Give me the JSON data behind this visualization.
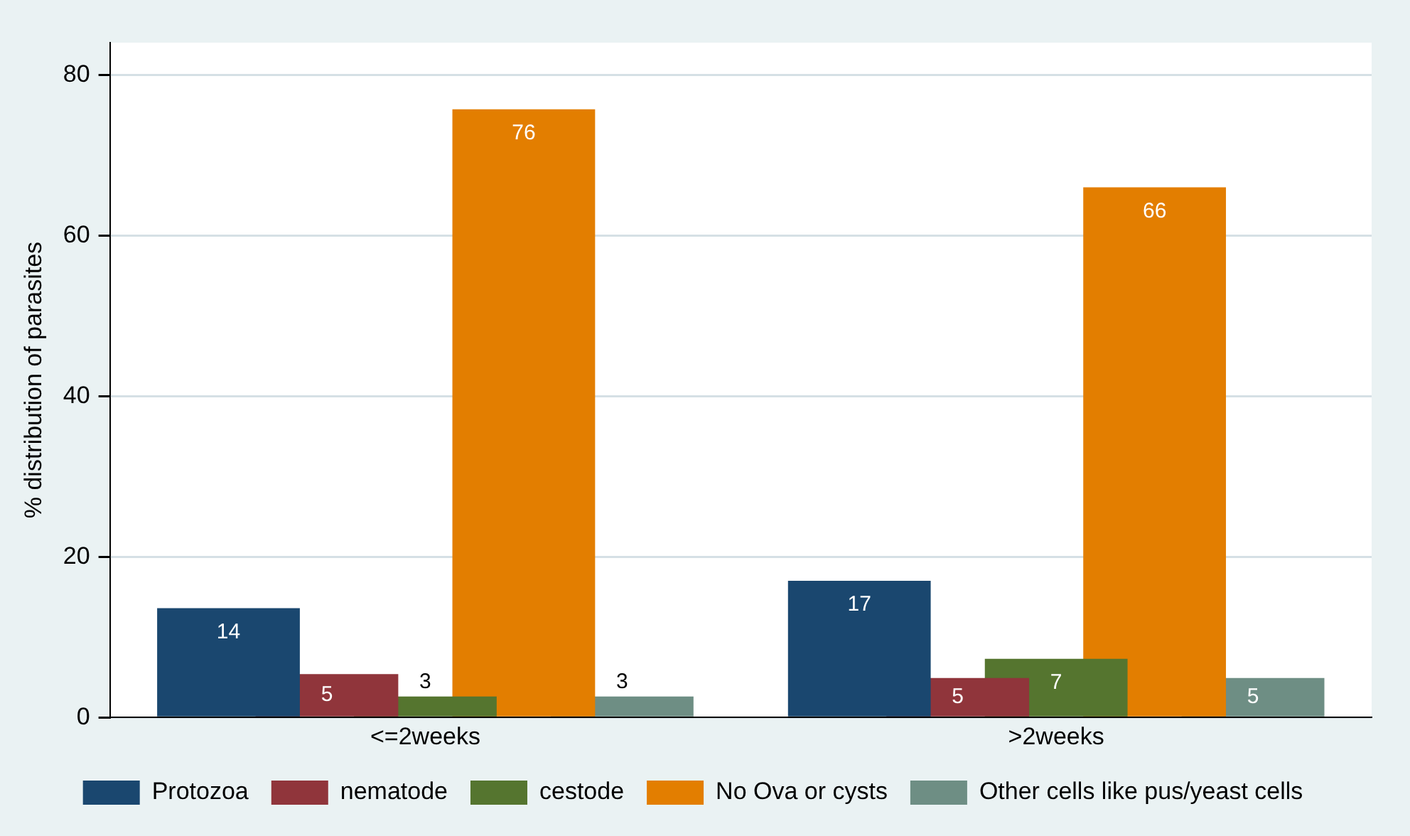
{
  "chart_data": {
    "type": "bar",
    "ylabel": "% distribution of parasites",
    "categories": [
      "<=2weeks",
      ">2weeks"
    ],
    "series": [
      {
        "name": "Protozoa",
        "color": "#1a476f",
        "values": [
          13.6,
          17.0
        ],
        "value_labels": [
          "14",
          "17"
        ]
      },
      {
        "name": "nematode",
        "color": "#90353b",
        "values": [
          5.4,
          4.9
        ],
        "value_labels": [
          "5",
          "5"
        ]
      },
      {
        "name": "cestode",
        "color": "#55752f",
        "values": [
          2.6,
          7.3
        ],
        "value_labels": [
          "3",
          "7"
        ]
      },
      {
        "name": "No Ova or cysts",
        "color": "#e37e00",
        "values": [
          75.7,
          66.0
        ],
        "value_labels": [
          "76",
          "66"
        ]
      },
      {
        "name": "Other cells like pus/yeast cells",
        "color": "#6e8e84",
        "values": [
          2.6,
          4.9
        ],
        "value_labels": [
          "3",
          "5"
        ]
      }
    ],
    "ylim": [
      0,
      84
    ],
    "yticks": [
      0,
      20,
      40,
      60,
      80
    ],
    "grid": "y",
    "legend": "bottom"
  }
}
